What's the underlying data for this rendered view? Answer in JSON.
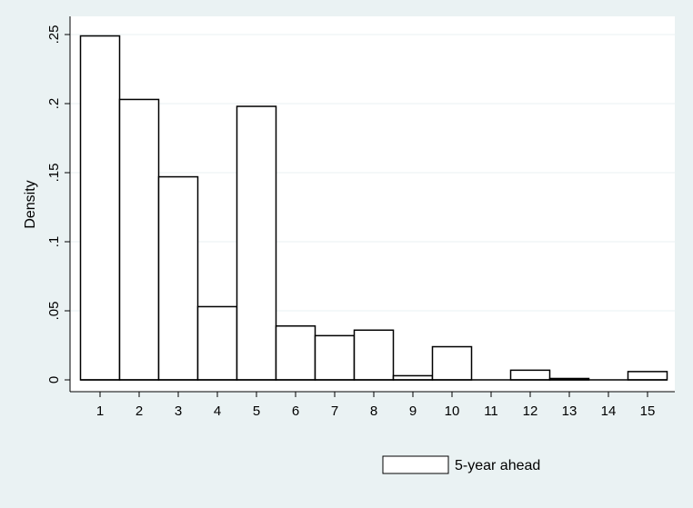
{
  "chart_data": {
    "type": "bar",
    "categories": [
      "1",
      "2",
      "3",
      "4",
      "5",
      "6",
      "7",
      "8",
      "9",
      "10",
      "11",
      "12",
      "13",
      "14",
      "15"
    ],
    "values": [
      0.249,
      0.203,
      0.147,
      0.053,
      0.198,
      0.039,
      0.032,
      0.036,
      0.003,
      0.024,
      0.0,
      0.007,
      0.001,
      0.0,
      0.006
    ],
    "xlabel": "",
    "ylabel": "Density",
    "ylim": [
      0,
      0.25
    ],
    "y_ticks": [
      0,
      0.05,
      0.1,
      0.15,
      0.2,
      0.25
    ],
    "y_tick_labels": [
      "0",
      ".05",
      ".1",
      ".15",
      ".2",
      ".25"
    ],
    "x_tick_labels": [
      "1",
      "2",
      "3",
      "4",
      "5",
      "6",
      "7",
      "8",
      "9",
      "10",
      "11",
      "12",
      "13",
      "14",
      "15"
    ],
    "grid": true,
    "legend": {
      "position": "bottom",
      "entries": [
        "5-year ahead"
      ]
    },
    "colors": {
      "background": "#eaf2f3",
      "plot_area": "#ffffff",
      "bar_fill": "#ffffff",
      "bar_stroke": "#000000",
      "grid": "#eaf2f3"
    }
  }
}
